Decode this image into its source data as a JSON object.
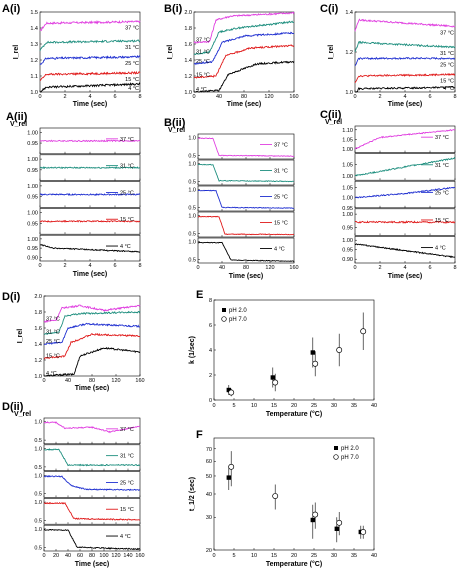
{
  "colors": {
    "37": "#e040e0",
    "31": "#1f8f7f",
    "25": "#1f2fd0",
    "15": "#e01a1a",
    "4": "#000000"
  },
  "chart_data": [
    {
      "panel": "A(i)",
      "type": "line",
      "xlabel": "Time (sec)",
      "ylabel": "I_rel",
      "xlim": [
        0,
        8
      ],
      "ylim": [
        1.0,
        1.5
      ],
      "xticks": [
        "0",
        "2",
        "4",
        "6",
        "8"
      ],
      "yticks": [
        "1.0",
        "1.1",
        "1.2",
        "1.3",
        "1.4",
        "1.5"
      ],
      "series": [
        {
          "name": "37 °C",
          "color": "#e040e0",
          "x": [
            0,
            0.5,
            8
          ],
          "y": [
            1.38,
            1.43,
            1.44
          ]
        },
        {
          "name": "31 °C",
          "color": "#1f8f7f",
          "x": [
            0,
            0.5,
            8
          ],
          "y": [
            1.26,
            1.31,
            1.32
          ]
        },
        {
          "name": "25 °C",
          "color": "#1f2fd0",
          "x": [
            0,
            0.5,
            8
          ],
          "y": [
            1.17,
            1.21,
            1.22
          ]
        },
        {
          "name": "15 °C",
          "color": "#e01a1a",
          "x": [
            0,
            0.5,
            8
          ],
          "y": [
            1.07,
            1.11,
            1.12
          ]
        },
        {
          "name": "4 °C",
          "color": "#000000",
          "x": [
            0,
            0.5,
            8
          ],
          "y": [
            1.0,
            1.03,
            1.05
          ]
        }
      ]
    },
    {
      "panel": "B(i)",
      "type": "line",
      "xlabel": "Time (sec)",
      "ylabel": "I_rel",
      "xlim": [
        0,
        160
      ],
      "ylim": [
        1.0,
        2.0
      ],
      "xticks": [
        "0",
        "40",
        "80",
        "120",
        "160"
      ],
      "yticks": [
        "1.0",
        "1.2",
        "1.4",
        "1.6",
        "1.8",
        "2.0"
      ],
      "series": [
        {
          "name": "37 °C",
          "color": "#e040e0",
          "x": [
            0,
            25,
            35,
            60,
            160
          ],
          "y": [
            1.62,
            1.63,
            1.9,
            1.95,
            1.99
          ]
        },
        {
          "name": "31 °C",
          "color": "#1f8f7f",
          "x": [
            0,
            25,
            40,
            70,
            160
          ],
          "y": [
            1.47,
            1.5,
            1.75,
            1.8,
            1.88
          ]
        },
        {
          "name": "25 °C",
          "color": "#1f2fd0",
          "x": [
            0,
            30,
            45,
            80,
            160
          ],
          "y": [
            1.35,
            1.38,
            1.62,
            1.7,
            1.74
          ]
        },
        {
          "name": "15 °C",
          "color": "#e01a1a",
          "x": [
            0,
            35,
            50,
            90,
            160
          ],
          "y": [
            1.18,
            1.2,
            1.45,
            1.55,
            1.58
          ]
        },
        {
          "name": "4 °C",
          "color": "#000000",
          "x": [
            0,
            40,
            55,
            100,
            160
          ],
          "y": [
            1.0,
            1.02,
            1.22,
            1.35,
            1.38
          ]
        }
      ]
    },
    {
      "panel": "C(i)",
      "type": "line",
      "xlabel": "Time (sec)",
      "ylabel": "I_rel",
      "xlim": [
        0,
        8
      ],
      "ylim": [
        1.0,
        1.5
      ],
      "xticks": [
        "0",
        "2",
        "4",
        "6",
        "8"
      ],
      "yticks": [
        "1.0",
        "1.2",
        "1.4"
      ],
      "series": [
        {
          "name": "37 °C",
          "color": "#e040e0",
          "x": [
            0,
            0.3,
            8
          ],
          "y": [
            1.38,
            1.45,
            1.41
          ]
        },
        {
          "name": "31 °C",
          "color": "#1f8f7f",
          "x": [
            0,
            0.3,
            8
          ],
          "y": [
            1.25,
            1.31,
            1.28
          ]
        },
        {
          "name": "25 °C",
          "color": "#1f2fd0",
          "x": [
            0,
            0.3,
            8
          ],
          "y": [
            1.16,
            1.21,
            1.21
          ]
        },
        {
          "name": "15 °C",
          "color": "#e01a1a",
          "x": [
            0,
            0.3,
            8
          ],
          "y": [
            1.06,
            1.1,
            1.11
          ]
        },
        {
          "name": "4 °C",
          "color": "#000000",
          "x": [
            0,
            0.3,
            8
          ],
          "y": [
            0.98,
            1.02,
            1.03
          ]
        }
      ]
    },
    {
      "panel": "D(i)",
      "type": "line",
      "xlabel": "Time (sec)",
      "ylabel": "I_rel",
      "xlim": [
        0,
        160
      ],
      "ylim": [
        1.0,
        2.0
      ],
      "xticks": [
        "0",
        "40",
        "80",
        "120",
        "160"
      ],
      "yticks": [
        "1.0",
        "1.2",
        "1.4",
        "1.6",
        "1.8",
        "2.0"
      ],
      "series": [
        {
          "name": "37 °C",
          "color": "#e040e0",
          "x": [
            0,
            20,
            30,
            60,
            100,
            160
          ],
          "y": [
            1.68,
            1.7,
            1.85,
            1.88,
            1.82,
            1.88
          ]
        },
        {
          "name": "31 °C",
          "color": "#1f8f7f",
          "x": [
            0,
            25,
            35,
            60,
            160
          ],
          "y": [
            1.52,
            1.55,
            1.75,
            1.78,
            1.8
          ]
        },
        {
          "name": "25 °C",
          "color": "#1f2fd0",
          "x": [
            0,
            30,
            40,
            70,
            160
          ],
          "y": [
            1.4,
            1.42,
            1.6,
            1.65,
            1.62
          ]
        },
        {
          "name": "15 °C",
          "color": "#e01a1a",
          "x": [
            0,
            35,
            45,
            80,
            160
          ],
          "y": [
            1.22,
            1.25,
            1.42,
            1.52,
            1.5
          ]
        },
        {
          "name": "4 °C",
          "color": "#000000",
          "x": [
            0,
            40,
            50,
            60,
            100,
            160
          ],
          "y": [
            1.0,
            1.02,
            1.02,
            1.25,
            1.35,
            1.3
          ]
        }
      ]
    },
    {
      "panel": "A(ii)",
      "type": "line",
      "ylabel": "V_rel",
      "xlabel": "Time (sec)",
      "xlim": [
        0,
        8
      ],
      "xticks": [
        "0",
        "2",
        "4",
        "6",
        "8"
      ],
      "subplots": [
        {
          "name": "37 °C",
          "color": "#e040e0",
          "ylim": [
            0.9,
            1.02
          ],
          "yticks": [
            "1.00",
            "0.95"
          ],
          "x": [
            0,
            8
          ],
          "y": [
            0.96,
            0.96
          ]
        },
        {
          "name": "31 °C",
          "color": "#1f8f7f",
          "ylim": [
            0.9,
            1.02
          ],
          "yticks": [
            "1.00",
            "0.95"
          ],
          "x": [
            0,
            8
          ],
          "y": [
            0.96,
            0.96
          ]
        },
        {
          "name": "25 °C",
          "color": "#1f2fd0",
          "ylim": [
            0.9,
            1.02
          ],
          "yticks": [
            "1.00",
            "0.95"
          ],
          "x": [
            0,
            8
          ],
          "y": [
            0.96,
            0.96
          ]
        },
        {
          "name": "15 °C",
          "color": "#e01a1a",
          "ylim": [
            0.9,
            1.02
          ],
          "yticks": [
            "1.00",
            "0.95"
          ],
          "x": [
            0,
            8
          ],
          "y": [
            0.96,
            0.96
          ]
        },
        {
          "name": "4 °C",
          "color": "#000000",
          "ylim": [
            0.88,
            1.02
          ],
          "yticks": [
            "1.00",
            "0.95",
            "0.90"
          ],
          "x": [
            0,
            1,
            8
          ],
          "y": [
            0.97,
            0.95,
            0.93
          ]
        }
      ]
    },
    {
      "panel": "B(ii)",
      "type": "line",
      "ylabel": "V_rel",
      "xlabel": "Time (sec)",
      "xlim": [
        0,
        160
      ],
      "xticks": [
        "0",
        "40",
        "80",
        "120",
        "160"
      ],
      "subplots": [
        {
          "name": "37 °C",
          "color": "#e040e0",
          "ylim": [
            0.4,
            1.1
          ],
          "yticks": [
            "1.0",
            "0.5"
          ],
          "x": [
            0,
            25,
            35,
            160
          ],
          "y": [
            0.98,
            0.98,
            0.5,
            0.48
          ]
        },
        {
          "name": "31 °C",
          "color": "#1f8f7f",
          "ylim": [
            0.4,
            1.1
          ],
          "yticks": [
            "1.0",
            "0.5"
          ],
          "x": [
            0,
            25,
            35,
            160
          ],
          "y": [
            0.97,
            0.97,
            0.52,
            0.5
          ]
        },
        {
          "name": "25 °C",
          "color": "#1f2fd0",
          "ylim": [
            0.4,
            1.1
          ],
          "yticks": [
            "1.0",
            "0.5"
          ],
          "x": [
            0,
            30,
            40,
            160
          ],
          "y": [
            0.97,
            0.97,
            0.5,
            0.48
          ]
        },
        {
          "name": "15 °C",
          "color": "#e01a1a",
          "ylim": [
            0.4,
            1.1
          ],
          "yticks": [
            "1.0",
            "0.5"
          ],
          "x": [
            0,
            35,
            45,
            160
          ],
          "y": [
            0.97,
            0.97,
            0.48,
            0.47
          ]
        },
        {
          "name": "4 °C",
          "color": "#000000",
          "ylim": [
            0.4,
            1.1
          ],
          "yticks": [
            "1.0",
            "0.5"
          ],
          "x": [
            0,
            40,
            55,
            160
          ],
          "y": [
            0.97,
            0.97,
            0.48,
            0.45
          ]
        }
      ]
    },
    {
      "panel": "C(ii)",
      "type": "line",
      "ylabel": "V_rel",
      "xlabel": "Time (sec)",
      "xlim": [
        0,
        8
      ],
      "xticks": [
        "0",
        "2",
        "4",
        "6",
        "8"
      ],
      "subplots": [
        {
          "name": "37 °C",
          "color": "#e040e0",
          "ylim": [
            0.98,
            1.12
          ],
          "yticks": [
            "1.10",
            "1.05",
            "1.00"
          ],
          "x": [
            0,
            2,
            8
          ],
          "y": [
            1.0,
            1.06,
            1.1
          ]
        },
        {
          "name": "31 °C",
          "color": "#1f8f7f",
          "ylim": [
            0.98,
            1.1
          ],
          "yticks": [
            "1.05",
            "1.00"
          ],
          "x": [
            0,
            8
          ],
          "y": [
            1.0,
            1.08
          ]
        },
        {
          "name": "25 °C",
          "color": "#1f2fd0",
          "ylim": [
            0.95,
            1.08
          ],
          "yticks": [
            "1.05",
            "1.00",
            "0.95"
          ],
          "x": [
            0,
            4,
            8
          ],
          "y": [
            1.0,
            1.02,
            1.05
          ]
        },
        {
          "name": "15 °C",
          "color": "#e01a1a",
          "ylim": [
            0.92,
            1.02
          ],
          "yticks": [
            "1.00",
            "0.95"
          ],
          "x": [
            0,
            8
          ],
          "y": [
            0.97,
            0.97
          ]
        },
        {
          "name": "4 °C",
          "color": "#000000",
          "ylim": [
            0.88,
            1.02
          ],
          "yticks": [
            "1.00",
            "0.95",
            "0.90"
          ],
          "x": [
            0,
            8
          ],
          "y": [
            0.98,
            0.91
          ]
        }
      ]
    },
    {
      "panel": "D(ii)",
      "type": "line",
      "ylabel": "V_rel",
      "xlabel": "Time (sec)",
      "xlim": [
        0,
        160
      ],
      "xticks": [
        "0",
        "20",
        "40",
        "60",
        "80",
        "100",
        "120",
        "140",
        "160"
      ],
      "subplots": [
        {
          "name": "37 °C",
          "color": "#e040e0",
          "ylim": [
            0.4,
            1.1
          ],
          "yticks": [
            "1.0",
            "0.5"
          ],
          "x": [
            0,
            20,
            35,
            80,
            110,
            160
          ],
          "y": [
            0.98,
            0.98,
            0.82,
            0.85,
            0.72,
            0.88
          ]
        },
        {
          "name": "31 °C",
          "color": "#1f8f7f",
          "ylim": [
            0.4,
            1.1
          ],
          "yticks": [
            "1.0",
            "0.5"
          ],
          "x": [
            0,
            25,
            40,
            160
          ],
          "y": [
            0.97,
            0.97,
            0.55,
            0.55
          ]
        },
        {
          "name": "25 °C",
          "color": "#1f2fd0",
          "ylim": [
            0.4,
            1.1
          ],
          "yticks": [
            "1.0",
            "0.5"
          ],
          "x": [
            0,
            30,
            45,
            70,
            160
          ],
          "y": [
            0.97,
            0.97,
            0.72,
            0.62,
            0.6
          ]
        },
        {
          "name": "15 °C",
          "color": "#e01a1a",
          "ylim": [
            0.4,
            1.1
          ],
          "yticks": [
            "1.0",
            "0.5"
          ],
          "x": [
            0,
            35,
            50,
            160
          ],
          "y": [
            0.97,
            0.97,
            0.55,
            0.52
          ]
        },
        {
          "name": "4 °C",
          "color": "#000000",
          "ylim": [
            0.4,
            1.1
          ],
          "yticks": [
            "1.0",
            "0.5"
          ],
          "x": [
            0,
            40,
            55,
            160
          ],
          "y": [
            0.97,
            0.97,
            0.5,
            0.45
          ]
        }
      ]
    },
    {
      "panel": "E",
      "type": "scatter",
      "xlabel": "Temperature (°C)",
      "ylabel": "k (1/sec)",
      "xlim": [
        0,
        40
      ],
      "ylim": [
        0,
        8
      ],
      "xticks": [
        "0",
        "5",
        "10",
        "15",
        "20",
        "25",
        "30",
        "35",
        "40"
      ],
      "yticks": [
        "0",
        "2",
        "4",
        "6",
        "8"
      ],
      "legend": "top-left",
      "series": [
        {
          "name": "pH 2.0",
          "marker": "filled-square",
          "x": [
            4,
            15,
            25
          ],
          "y": [
            0.8,
            1.8,
            3.8
          ],
          "err": [
            0.4,
            0.8,
            1.2
          ]
        },
        {
          "name": "pH 7.0",
          "marker": "open-circle",
          "x": [
            4,
            15,
            25,
            31,
            37
          ],
          "y": [
            0.6,
            1.4,
            2.9,
            4.0,
            5.5
          ],
          "err": [
            0.3,
            0.7,
            1.0,
            1.3,
            1.5
          ]
        }
      ]
    },
    {
      "panel": "F",
      "type": "scatter",
      "xlabel": "Temperature (°C)",
      "ylabel": "t_1/2 (sec)",
      "xlim": [
        0,
        40
      ],
      "ylim": [
        20,
        80
      ],
      "yscale": "log",
      "xticks": [
        "0",
        "5",
        "10",
        "15",
        "20",
        "25",
        "30",
        "35",
        "40"
      ],
      "yticks": [
        "20",
        "30",
        "40",
        "50",
        "60",
        "70"
      ],
      "legend": "top-right",
      "series": [
        {
          "name": "pH 2.0",
          "marker": "filled-square",
          "x": [
            4,
            25,
            31,
            37
          ],
          "y": [
            49,
            29,
            26,
            25
          ],
          "err": [
            7,
            6,
            4,
            2
          ]
        },
        {
          "name": "pH 7.0",
          "marker": "open-circle",
          "x": [
            4,
            15,
            25,
            31,
            37
          ],
          "y": [
            56,
            39,
            31,
            28,
            25
          ],
          "err": [
            12,
            6,
            5,
            4,
            2
          ]
        }
      ]
    }
  ]
}
